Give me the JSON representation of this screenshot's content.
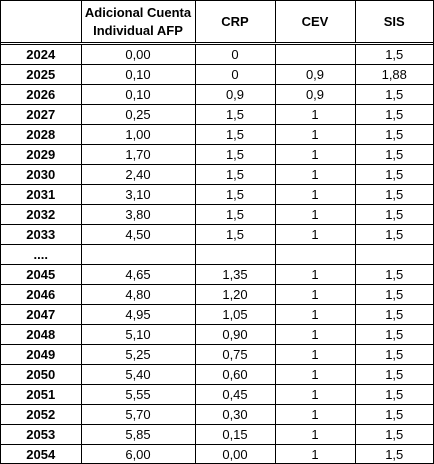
{
  "table": {
    "headers": {
      "year": "",
      "afp": "Adicional Cuenta Individual AFP",
      "crp": "CRP",
      "cev": "CEV",
      "sis": "SIS"
    },
    "rows": [
      {
        "year": "2024",
        "afp": "0,00",
        "crp": "0",
        "cev": "",
        "sis": "1,5"
      },
      {
        "year": "2025",
        "afp": "0,10",
        "crp": "0",
        "cev": "0,9",
        "sis": "1,88"
      },
      {
        "year": "2026",
        "afp": "0,10",
        "crp": "0,9",
        "cev": "0,9",
        "sis": "1,5"
      },
      {
        "year": "2027",
        "afp": "0,25",
        "crp": "1,5",
        "cev": "1",
        "sis": "1,5"
      },
      {
        "year": "2028",
        "afp": "1,00",
        "crp": "1,5",
        "cev": "1",
        "sis": "1,5"
      },
      {
        "year": "2029",
        "afp": "1,70",
        "crp": "1,5",
        "cev": "1",
        "sis": "1,5"
      },
      {
        "year": "2030",
        "afp": "2,40",
        "crp": "1,5",
        "cev": "1",
        "sis": "1,5"
      },
      {
        "year": "2031",
        "afp": "3,10",
        "crp": "1,5",
        "cev": "1",
        "sis": "1,5"
      },
      {
        "year": "2032",
        "afp": "3,80",
        "crp": "1,5",
        "cev": "1",
        "sis": "1,5"
      },
      {
        "year": "2033",
        "afp": "4,50",
        "crp": "1,5",
        "cev": "1",
        "sis": "1,5"
      },
      {
        "year": "....",
        "afp": "",
        "crp": "",
        "cev": "",
        "sis": ""
      },
      {
        "year": "2045",
        "afp": "4,65",
        "crp": "1,35",
        "cev": "1",
        "sis": "1,5"
      },
      {
        "year": "2046",
        "afp": "4,80",
        "crp": "1,20",
        "cev": "1",
        "sis": "1,5"
      },
      {
        "year": "2047",
        "afp": "4,95",
        "crp": "1,05",
        "cev": "1",
        "sis": "1,5"
      },
      {
        "year": "2048",
        "afp": "5,10",
        "crp": "0,90",
        "cev": "1",
        "sis": "1,5"
      },
      {
        "year": "2049",
        "afp": "5,25",
        "crp": "0,75",
        "cev": "1",
        "sis": "1,5"
      },
      {
        "year": "2050",
        "afp": "5,40",
        "crp": "0,60",
        "cev": "1",
        "sis": "1,5"
      },
      {
        "year": "2051",
        "afp": "5,55",
        "crp": "0,45",
        "cev": "1",
        "sis": "1,5"
      },
      {
        "year": "2052",
        "afp": "5,70",
        "crp": "0,30",
        "cev": "1",
        "sis": "1,5"
      },
      {
        "year": "2053",
        "afp": "5,85",
        "crp": "0,15",
        "cev": "1",
        "sis": "1,5"
      },
      {
        "year": "2054",
        "afp": "6,00",
        "crp": "0,00",
        "cev": "1",
        "sis": "1,5"
      }
    ]
  }
}
